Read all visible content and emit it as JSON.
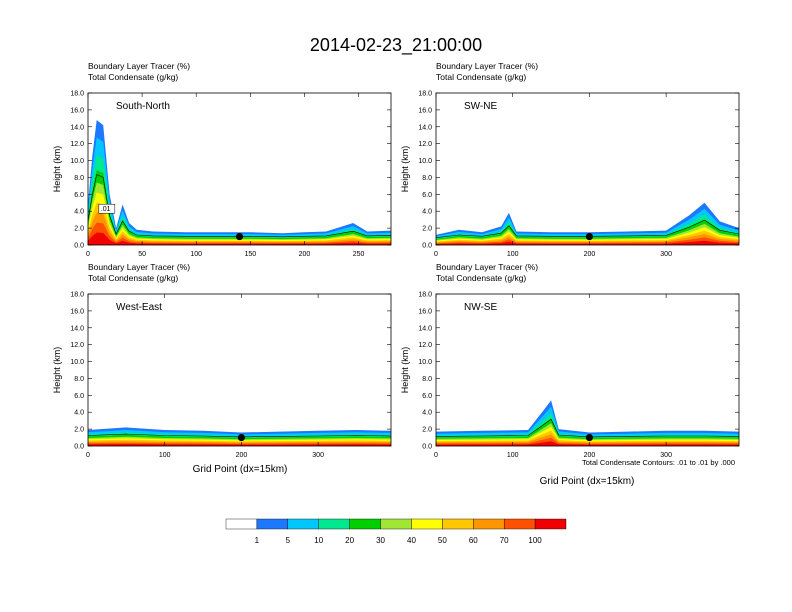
{
  "title": "2014-02-23_21:00:00",
  "panel_header_line1": "Boundary Layer Tracer   (%)",
  "panel_header_line2": "Total Condensate   (g/kg)",
  "y_axis_label": "Height (km)",
  "x_axis_label": "Grid Point (dx=15km)",
  "contour_note": "Total Condensate Contours: .01 to .01 by .000",
  "contour_label": ".01",
  "colorbar": {
    "labels": [
      "1",
      "5",
      "10",
      "20",
      "30",
      "40",
      "50",
      "60",
      "70",
      "100"
    ],
    "colors": [
      "#ffffff",
      "#1e78ff",
      "#00c8ff",
      "#00e890",
      "#00d000",
      "#a0e632",
      "#ffff00",
      "#ffc800",
      "#ff9600",
      "#ff5000",
      "#f00000"
    ]
  },
  "chart_data": [
    {
      "type": "contour",
      "panel": "South-North",
      "title": "South-North",
      "xlabel": "",
      "ylabel": "Height (km)",
      "xlim": [
        0,
        280
      ],
      "ylim": [
        0,
        18
      ],
      "xticks": [
        0,
        50,
        100,
        150,
        200,
        250
      ],
      "yticks": [
        "0.0",
        "2.0",
        "4.0",
        "6.0",
        "8.0",
        "10.0",
        "12.0",
        "14.0",
        "16.0",
        "18.0"
      ],
      "marker_x": 140,
      "tracer_surface_km": [
        [
          0,
          4.8
        ],
        [
          4,
          10.5
        ],
        [
          8,
          14.8
        ],
        [
          14,
          14.2
        ],
        [
          20,
          6.0
        ],
        [
          26,
          2.0
        ],
        [
          32,
          4.8
        ],
        [
          38,
          2.6
        ],
        [
          45,
          1.8
        ],
        [
          60,
          1.6
        ],
        [
          90,
          1.5
        ],
        [
          120,
          1.5
        ],
        [
          150,
          1.5
        ],
        [
          180,
          1.4
        ],
        [
          200,
          1.5
        ],
        [
          220,
          1.6
        ],
        [
          245,
          2.6
        ],
        [
          258,
          1.6
        ],
        [
          280,
          1.7
        ]
      ]
    },
    {
      "type": "contour",
      "panel": "SW-NE",
      "title": "SW-NE",
      "xlabel": "",
      "ylabel": "Height (km)",
      "xlim": [
        0,
        395
      ],
      "ylim": [
        0,
        18
      ],
      "xticks": [
        0,
        100,
        200,
        300
      ],
      "yticks": [
        "0.0",
        "2.0",
        "4.0",
        "6.0",
        "8.0",
        "10.0",
        "12.0",
        "14.0",
        "16.0",
        "18.0"
      ],
      "marker_x": 200,
      "tracer_surface_km": [
        [
          0,
          1.2
        ],
        [
          30,
          1.8
        ],
        [
          60,
          1.5
        ],
        [
          85,
          2.2
        ],
        [
          95,
          3.8
        ],
        [
          105,
          1.6
        ],
        [
          150,
          1.5
        ],
        [
          200,
          1.5
        ],
        [
          250,
          1.6
        ],
        [
          300,
          1.7
        ],
        [
          330,
          3.5
        ],
        [
          350,
          5.0
        ],
        [
          370,
          2.8
        ],
        [
          395,
          2.0
        ]
      ]
    },
    {
      "type": "contour",
      "panel": "West-East",
      "title": "West-East",
      "xlabel": "Grid Point (dx=15km)",
      "ylabel": "Height (km)",
      "xlim": [
        0,
        395
      ],
      "ylim": [
        0,
        18
      ],
      "xticks": [
        0,
        100,
        200,
        300
      ],
      "yticks": [
        "0.0",
        "2.0",
        "4.0",
        "6.0",
        "8.0",
        "10.0",
        "12.0",
        "14.0",
        "16.0",
        "18.0"
      ],
      "marker_x": 200,
      "tracer_surface_km": [
        [
          0,
          1.9
        ],
        [
          50,
          2.2
        ],
        [
          100,
          1.9
        ],
        [
          150,
          1.8
        ],
        [
          200,
          1.6
        ],
        [
          250,
          1.7
        ],
        [
          300,
          1.8
        ],
        [
          350,
          1.9
        ],
        [
          395,
          1.8
        ]
      ]
    },
    {
      "type": "contour",
      "panel": "NW-SE",
      "title": "NW-SE",
      "xlabel": "Grid Point (dx=15km)",
      "ylabel": "Height (km)",
      "xlim": [
        0,
        395
      ],
      "ylim": [
        0,
        18
      ],
      "xticks": [
        0,
        100,
        200,
        300
      ],
      "yticks": [
        "0.0",
        "2.0",
        "4.0",
        "6.0",
        "8.0",
        "10.0",
        "12.0",
        "14.0",
        "16.0",
        "18.0"
      ],
      "marker_x": 200,
      "tracer_surface_km": [
        [
          0,
          1.7
        ],
        [
          60,
          1.8
        ],
        [
          120,
          1.9
        ],
        [
          140,
          4.2
        ],
        [
          150,
          5.4
        ],
        [
          160,
          2.0
        ],
        [
          200,
          1.6
        ],
        [
          250,
          1.7
        ],
        [
          300,
          1.8
        ],
        [
          350,
          1.8
        ],
        [
          395,
          1.7
        ]
      ]
    }
  ]
}
